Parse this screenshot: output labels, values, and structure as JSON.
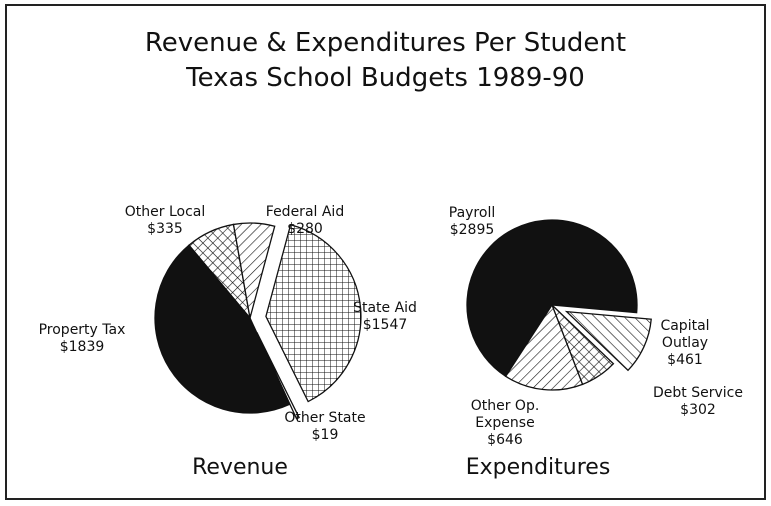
{
  "title": [
    "Revenue & Expenditures Per Student",
    "Texas School Budgets 1989-90"
  ],
  "chart_data": [
    {
      "type": "pie",
      "title": "Revenue",
      "categories": [
        "Other Local",
        "Federal Aid",
        "State Aid",
        "Other State",
        "Property Tax"
      ],
      "values": [
        335,
        280,
        1547,
        19,
        1839
      ],
      "value_labels": [
        "$335",
        "$280",
        "$1547",
        "$19",
        "$1839"
      ],
      "exploded": [
        false,
        false,
        true,
        true,
        false
      ],
      "fills": [
        "crosshatch",
        "diagonal-right",
        "grid",
        "white",
        "solid"
      ]
    },
    {
      "type": "pie",
      "title": "Expenditures",
      "categories": [
        "Payroll",
        "Capital Outlay",
        "Debt Service",
        "Other Op. Expense"
      ],
      "values": [
        2895,
        461,
        302,
        646
      ],
      "value_labels": [
        "$2895",
        "$461",
        "$302",
        "$646"
      ],
      "exploded": [
        false,
        true,
        false,
        false
      ],
      "fills": [
        "solid",
        "diagonal-left",
        "crosshatch",
        "diagonal-right"
      ]
    }
  ]
}
